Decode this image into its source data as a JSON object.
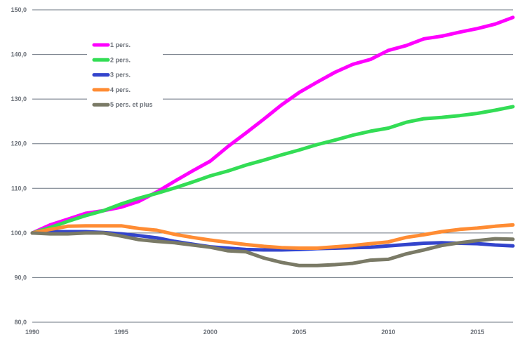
{
  "chart_data": {
    "type": "line",
    "title": "",
    "xlabel": "",
    "ylabel": "",
    "xlim": [
      1990,
      2017
    ],
    "ylim": [
      80,
      150
    ],
    "x_ticks": [
      "1990",
      "1995",
      "2000",
      "2005",
      "2010",
      "2015"
    ],
    "y_ticks": [
      "80,0",
      "90,0",
      "100,0",
      "110,0",
      "120,0",
      "130,0",
      "140,0",
      "150,0"
    ],
    "grid": "horizontal",
    "legend_position": "top-left",
    "x": [
      1990,
      1991,
      1992,
      1993,
      1994,
      1995,
      1996,
      1997,
      1998,
      1999,
      2000,
      2001,
      2002,
      2003,
      2004,
      2005,
      2006,
      2007,
      2008,
      2009,
      2010,
      2011,
      2012,
      2013,
      2014,
      2015,
      2016,
      2017
    ],
    "series": [
      {
        "name": "1 pers.",
        "color": "#ff00ff",
        "values": [
          100.0,
          101.8,
          103.1,
          104.4,
          105.0,
          105.8,
          107.1,
          109.2,
          111.6,
          113.9,
          116.1,
          119.4,
          122.4,
          125.5,
          128.7,
          131.5,
          133.8,
          136.0,
          137.8,
          138.9,
          140.9,
          142.0,
          143.5,
          144.1,
          145.0,
          145.8,
          146.8,
          148.3
        ]
      },
      {
        "name": "2 pers.",
        "color": "#33dd55",
        "values": [
          100.0,
          101.2,
          102.6,
          103.9,
          105.0,
          106.5,
          107.8,
          108.9,
          110.1,
          111.4,
          112.8,
          113.9,
          115.2,
          116.3,
          117.5,
          118.6,
          119.8,
          120.8,
          121.9,
          122.8,
          123.5,
          124.8,
          125.6,
          125.9,
          126.3,
          126.8,
          127.5,
          128.3
        ]
      },
      {
        "name": "3 pers.",
        "color": "#3344cc",
        "values": [
          100.0,
          100.3,
          100.3,
          100.3,
          100.1,
          99.8,
          99.4,
          98.9,
          98.1,
          97.5,
          96.9,
          96.6,
          96.3,
          96.2,
          96.2,
          96.3,
          96.5,
          96.6,
          96.7,
          96.8,
          97.1,
          97.4,
          97.7,
          97.8,
          97.7,
          97.6,
          97.3,
          97.1
        ]
      },
      {
        "name": "4 pers.",
        "color": "#ff8c33",
        "values": [
          100.0,
          100.8,
          101.5,
          101.6,
          101.6,
          101.6,
          101.0,
          100.6,
          99.7,
          99.0,
          98.4,
          97.9,
          97.4,
          97.0,
          96.7,
          96.6,
          96.6,
          96.9,
          97.2,
          97.6,
          98.0,
          99.0,
          99.6,
          100.3,
          100.8,
          101.1,
          101.5,
          101.8
        ]
      },
      {
        "name": "5 pers. et plus",
        "color": "#7a7a66",
        "values": [
          100.0,
          99.8,
          99.8,
          100.0,
          100.0,
          99.3,
          98.5,
          98.1,
          97.8,
          97.3,
          96.8,
          96.0,
          95.8,
          94.4,
          93.4,
          92.7,
          92.7,
          92.9,
          93.2,
          93.9,
          94.1,
          95.3,
          96.2,
          97.2,
          97.8,
          98.3,
          98.7,
          98.6
        ]
      }
    ]
  }
}
